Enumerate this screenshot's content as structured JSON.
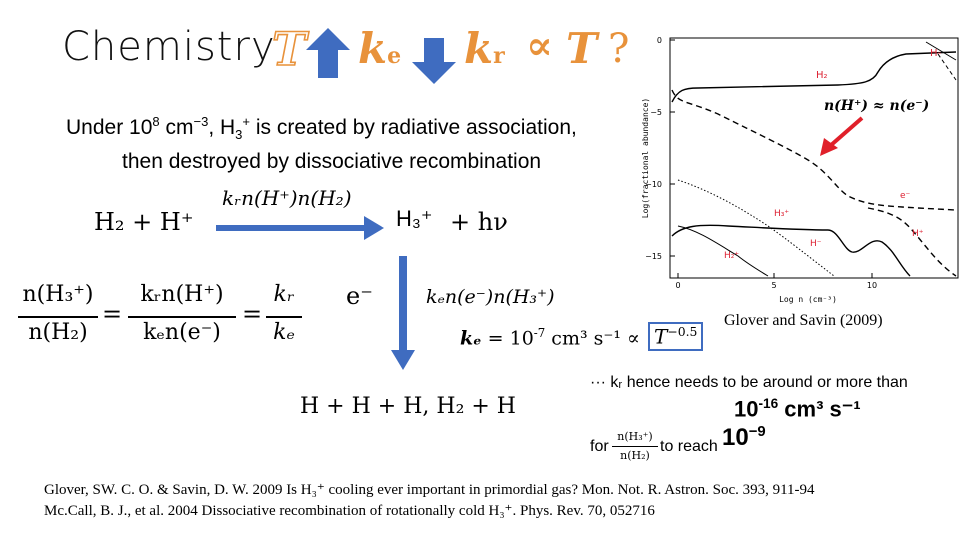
{
  "title": "Chemistry",
  "headline": {
    "t": "T",
    "ke_k": "k",
    "ke_sub": "e",
    "kr_k": "k",
    "kr_sub": "r",
    "prop": "∝",
    "t2": "T",
    "q": "?"
  },
  "intro": {
    "line1_a": "Under 10",
    "line1_exp": "8",
    "line1_b": " cm",
    "line1_exp2": "−3",
    "line1_c": ", H",
    "line1_sub": "3",
    "line1_sup": "+",
    "line1_d": " is created by radiative association,",
    "line2": "then destroyed by dissociative recombination"
  },
  "reaction1": {
    "lhs": "H₂ + H⁺",
    "rate": "kᵣn(H⁺)n(H₂)",
    "product": "H₃⁺",
    "rhs_extra": "+ hν"
  },
  "ratio": {
    "num1": "n(H₃⁺)",
    "den1": "n(H₂)",
    "num2": "kᵣn(H⁺)",
    "den2": "kₑn(e⁻)",
    "num3": "kᵣ",
    "den3": "kₑ",
    "eq": "="
  },
  "recomb": {
    "electron": "e⁻",
    "rate": "kₑn(e⁻)n(H₃⁺)",
    "ke_label": "kₑ",
    "ke_value": " = 10",
    "ke_exp": "-7",
    "ke_units": " cm³ s⁻¹ ∝",
    "tpow": "T",
    "tpow_exp": "−0.5",
    "products": "H + H + H, H₂ + H"
  },
  "citation_plot": "Glover and Savin (2009)",
  "conclusion": {
    "line1": "··· kᵣ hence needs to be around or more than",
    "value1": "10",
    "value1_exp": "-16",
    "value1_units": " cm³ s⁻¹",
    "for_text": "for",
    "frac_num": "n(H₃⁺)",
    "frac_den": "n(H₂)",
    "reach_text": "to reach",
    "value2": "10",
    "value2_exp": "−9"
  },
  "plot": {
    "ylabel": "Log(fractional abundance)",
    "xlabel": "Log n (cm⁻³)",
    "yticks": [
      "0",
      "−5",
      "−10",
      "−15"
    ],
    "xticks": [
      "0",
      "5",
      "10"
    ],
    "labels": {
      "h_top": "H-",
      "h2": "H₂",
      "e": "e⁻",
      "h3p": "H₃⁺",
      "hp": "H⁺",
      "hminus": "H⁻",
      "h2p": "H₂⁺"
    },
    "annotation": "n(H⁺) ≈ n(e⁻)"
  },
  "references": [
    "Glover, SW. C. O. & Savin, D. W. 2009 Is H₃⁺ cooling ever important in primordial gas? Mon. Not. R. Astron. Soc. 393, 911-94",
    "Mc.Call, B. J., et al. 2004 Dissociative recombination of rotationally cold H₃⁺. Phys. Rev. 70, 052716"
  ]
}
